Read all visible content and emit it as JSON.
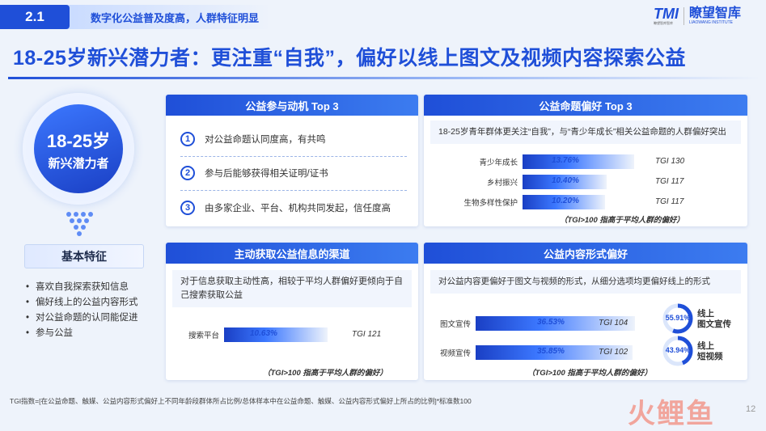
{
  "header": {
    "section_number": "2.1",
    "section_title": "数字化公益普及度高，人群特征明显",
    "logo_mark": "TMI",
    "logo_sub": "瞭望智库智库",
    "logo_name": "瞭望智库",
    "logo_en": "LIAOWANG INSTITUTE",
    "main_title": "18-25岁新兴潜力者：更注重“自我”，偏好以线上图文及视频内容探索公益"
  },
  "persona": {
    "age": "18-25岁",
    "label": "新兴潜力者"
  },
  "basic": {
    "title": "基本特征",
    "items": [
      "喜欢自我探索获知信息",
      "偏好线上的公益内容形式",
      "对公益命题的认同能促进",
      "参与公益"
    ]
  },
  "motives": {
    "title": "公益参与动机 Top 3",
    "items": [
      {
        "num": "1",
        "text": "对公益命题认同度高，有共鸣"
      },
      {
        "num": "2",
        "text": "参与后能够获得相关证明/证书"
      },
      {
        "num": "3",
        "text": "由多家企业、平台、机构共同发起，信任度高"
      }
    ]
  },
  "topic_pref": {
    "title": "公益命题偏好 Top 3",
    "note": "18-25岁青年群体更关注“自我”，与“青少年成长”相关公益命题的人群偏好突出",
    "rows": [
      {
        "label": "青少年成长",
        "value": "13.76%",
        "pct": 13.76,
        "tgi": "TGI 130"
      },
      {
        "label": "乡村振兴",
        "value": "10.40%",
        "pct": 10.4,
        "tgi": "TGI 117"
      },
      {
        "label": "生物多样性保护",
        "value": "10.20%",
        "pct": 10.2,
        "tgi": "TGI 117"
      }
    ],
    "tgi_note": "（TGI>100 指高于平均人群的偏好）"
  },
  "channel": {
    "title": "主动获取公益信息的渠道",
    "note": "对于信息获取主动性高，相较于平均人群偏好更倾向于自己搜索获取公益",
    "rows": [
      {
        "label": "搜索平台",
        "value": "10.63%",
        "pct": 10.63,
        "tgi": "TGI 121"
      }
    ],
    "tgi_note": "（TGI>100 指高于平均人群的偏好）"
  },
  "content_form": {
    "title": "公益内容形式偏好",
    "note": "对公益内容更偏好于图文与视频的形式，从细分选项均更偏好线上的形式",
    "rows": [
      {
        "label": "图文宣传",
        "value": "36.53%",
        "pct": 36.53,
        "tgi": "TGI 104"
      },
      {
        "label": "视频宣传",
        "value": "35.85%",
        "pct": 35.85,
        "tgi": "TGI 102"
      }
    ],
    "donuts": [
      {
        "value": "55.91%",
        "pct": 55.91,
        "label1": "线上",
        "label2": "图文宣传"
      },
      {
        "value": "43.94%",
        "pct": 43.94,
        "label1": "线上",
        "label2": "短视频"
      }
    ],
    "tgi_note": "（TGI>100 指高于平均人群的偏好）"
  },
  "footnote": "TGI指数=[在公益命题、触媒、公益内容形式偏好上不同年龄段群体所占比例/总体样本中在公益命题、触媒、公益内容形式偏好上所占的比例]*标准数100",
  "watermark": "火鲤鱼",
  "page_number": "12",
  "colors": {
    "accent": "#1f4fd8",
    "bar_dark": "#1a3fc4",
    "bar_light": "#3c78ff"
  }
}
